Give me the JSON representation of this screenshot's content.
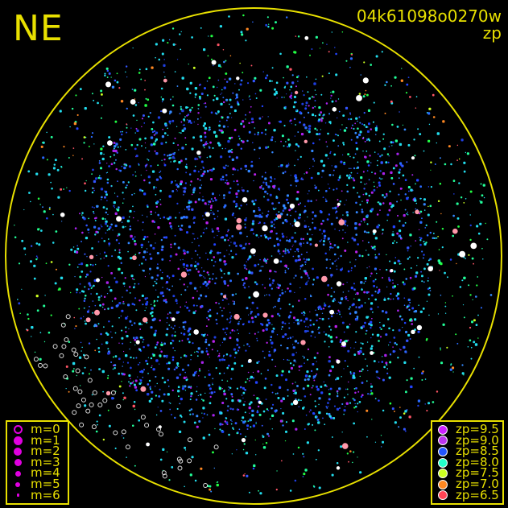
{
  "header": {
    "direction": "NE",
    "frame_id": "04k61098o0270w",
    "quantity": "zp"
  },
  "colors": {
    "frame": "#e8e000",
    "background": "#000000",
    "bright_star": "#ffffff"
  },
  "chart_data": {
    "type": "scatter",
    "title": "04k61098o0270w",
    "subtitle": "zp",
    "projection": "all-sky circle",
    "magnitude_legend": [
      {
        "label": "m=0",
        "symbol": "open-circle"
      },
      {
        "label": "m=1"
      },
      {
        "label": "m=2"
      },
      {
        "label": "m=3"
      },
      {
        "label": "m=4"
      },
      {
        "label": "m=5"
      },
      {
        "label": "m=6"
      }
    ],
    "zp_legend": [
      {
        "label": "zp=9.5",
        "zp": 9.5,
        "color": "#cc22ff"
      },
      {
        "label": "zp=9.0",
        "zp": 9.0,
        "color": "#bb33ee"
      },
      {
        "label": "zp=8.5",
        "zp": 8.5,
        "color": "#2255ff"
      },
      {
        "label": "zp=8.0",
        "zp": 8.0,
        "color": "#22ffcc"
      },
      {
        "label": "zp=7.5",
        "zp": 7.5,
        "color": "#ccff22"
      },
      {
        "label": "zp=7.0",
        "zp": 7.0,
        "color": "#ff8822"
      },
      {
        "label": "zp=6.5",
        "zp": 6.5,
        "color": "#ff4455"
      }
    ]
  }
}
